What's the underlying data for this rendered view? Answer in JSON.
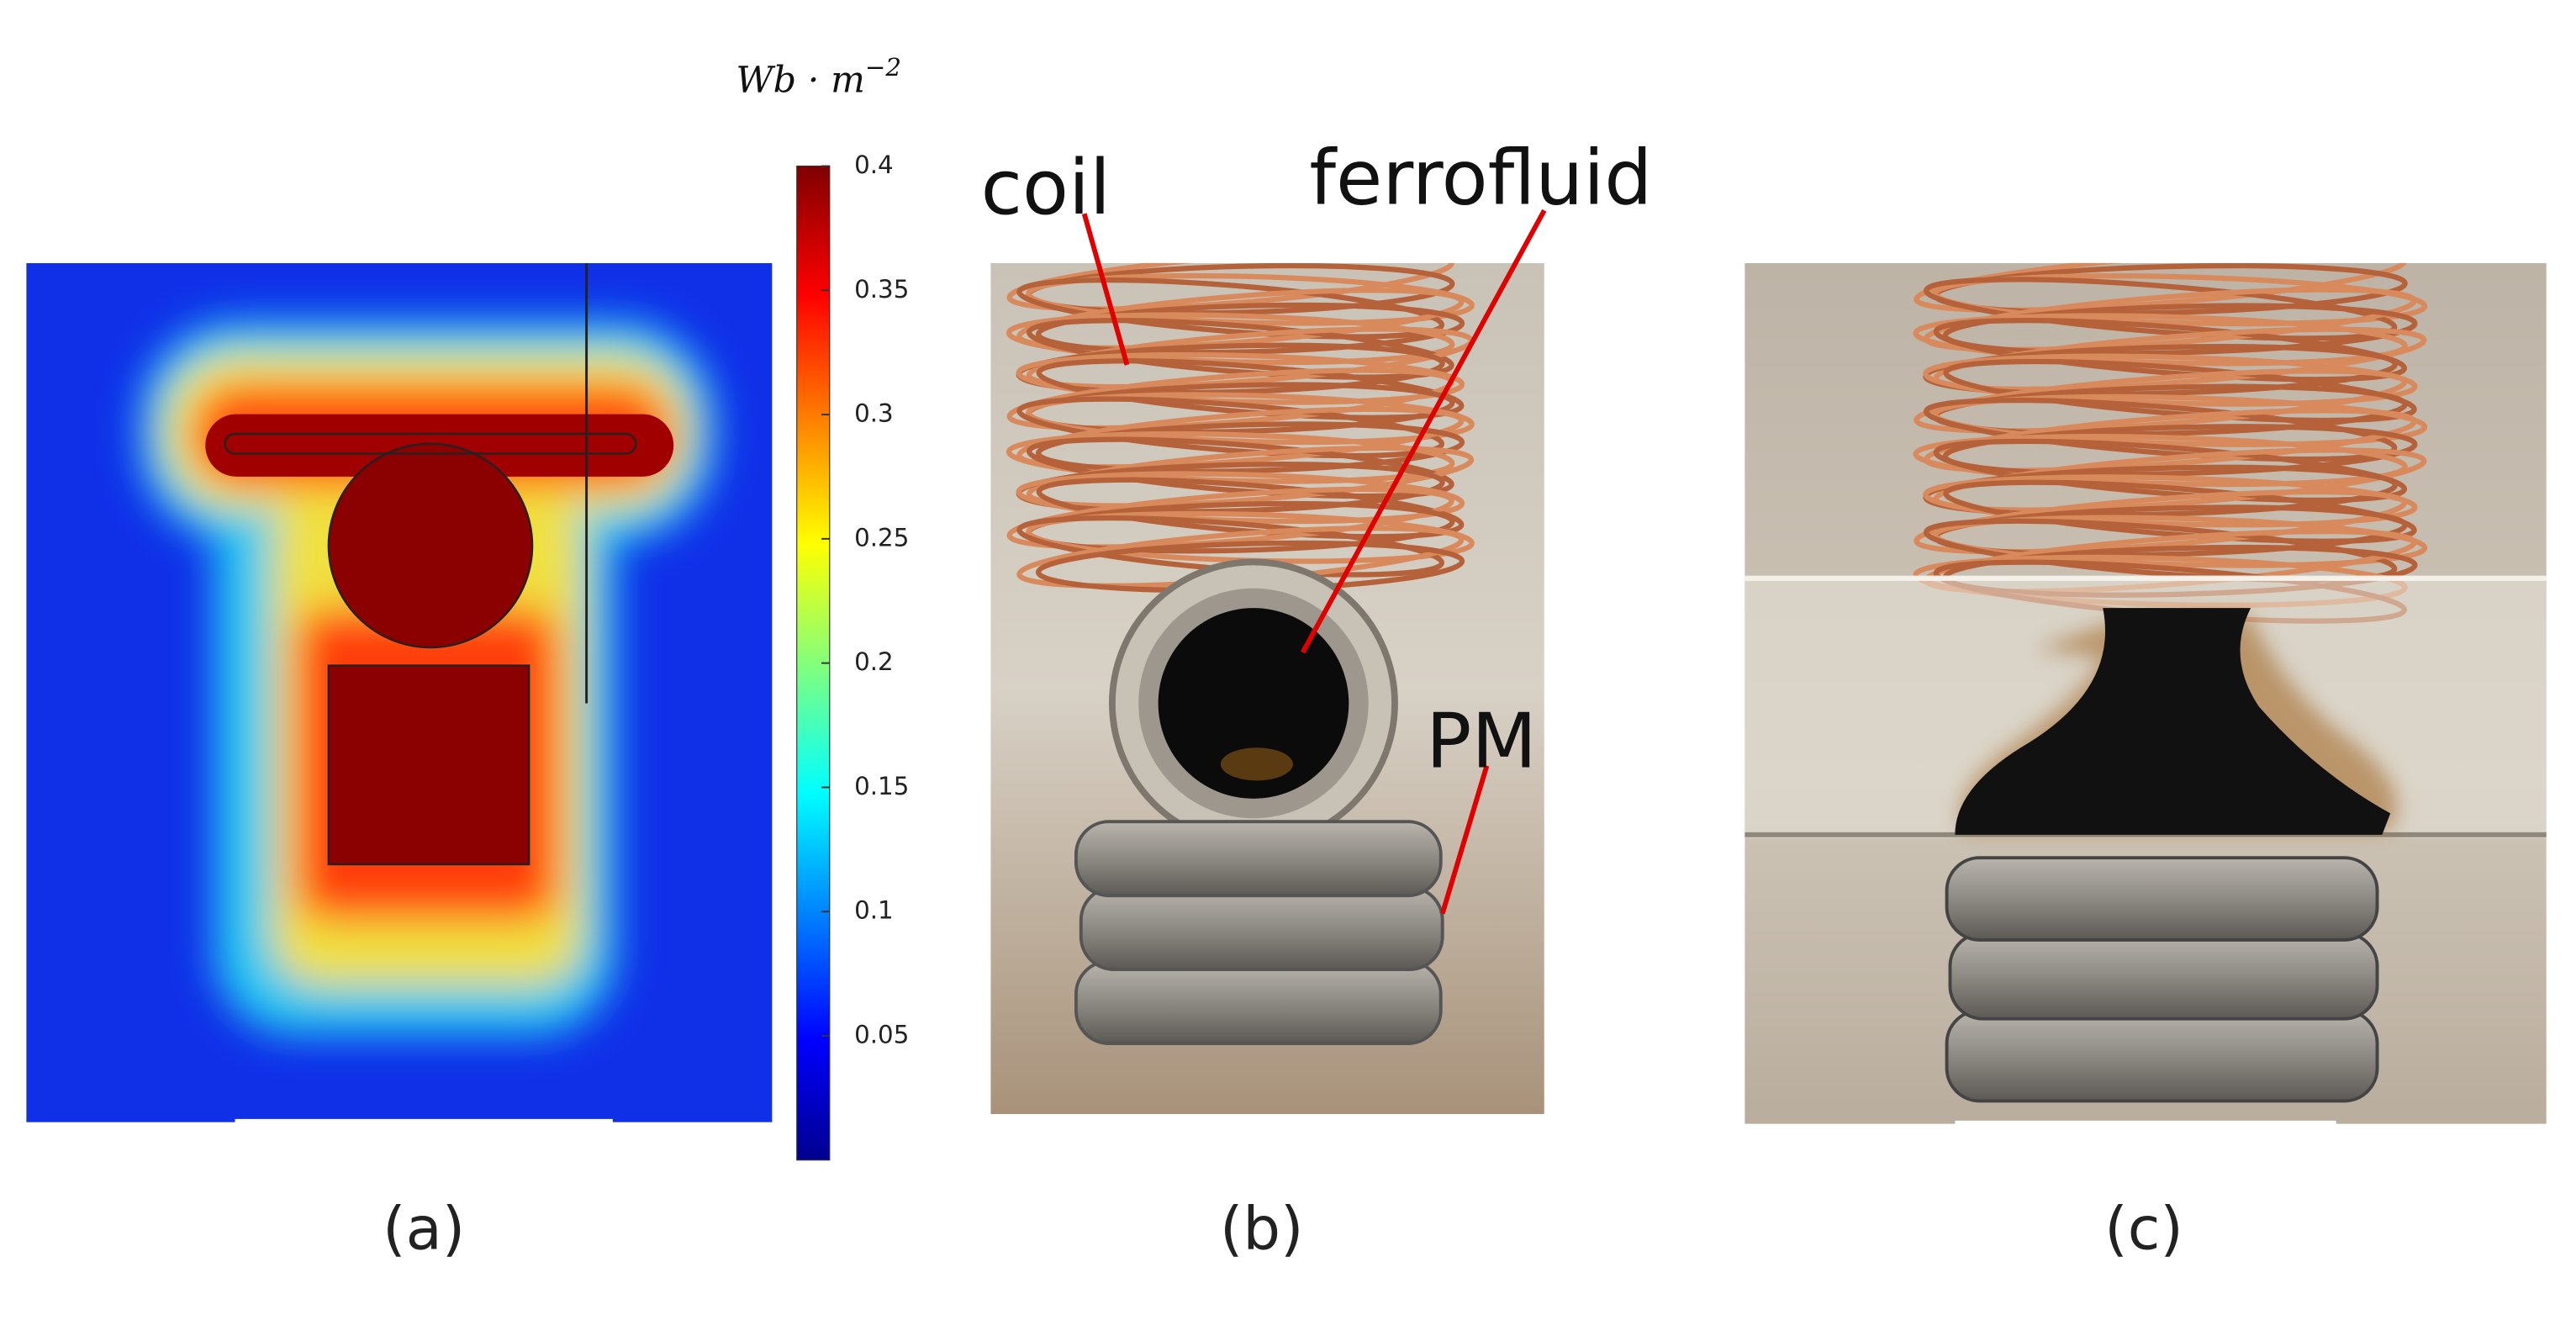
{
  "panels": [
    {
      "caption": "(a)",
      "colorbar": {
        "unit": {
          "base": "Wb · m",
          "exponent": "−2"
        },
        "range": [
          0,
          0.4
        ],
        "ticks": [
          0.4,
          0.35,
          0.3,
          0.25,
          0.2,
          0.15,
          0.1,
          0.05
        ]
      }
    },
    {
      "caption": "(b)",
      "labels": [
        "coil",
        "ferrofluid",
        "PM"
      ]
    },
    {
      "caption": "(c)"
    }
  ]
}
